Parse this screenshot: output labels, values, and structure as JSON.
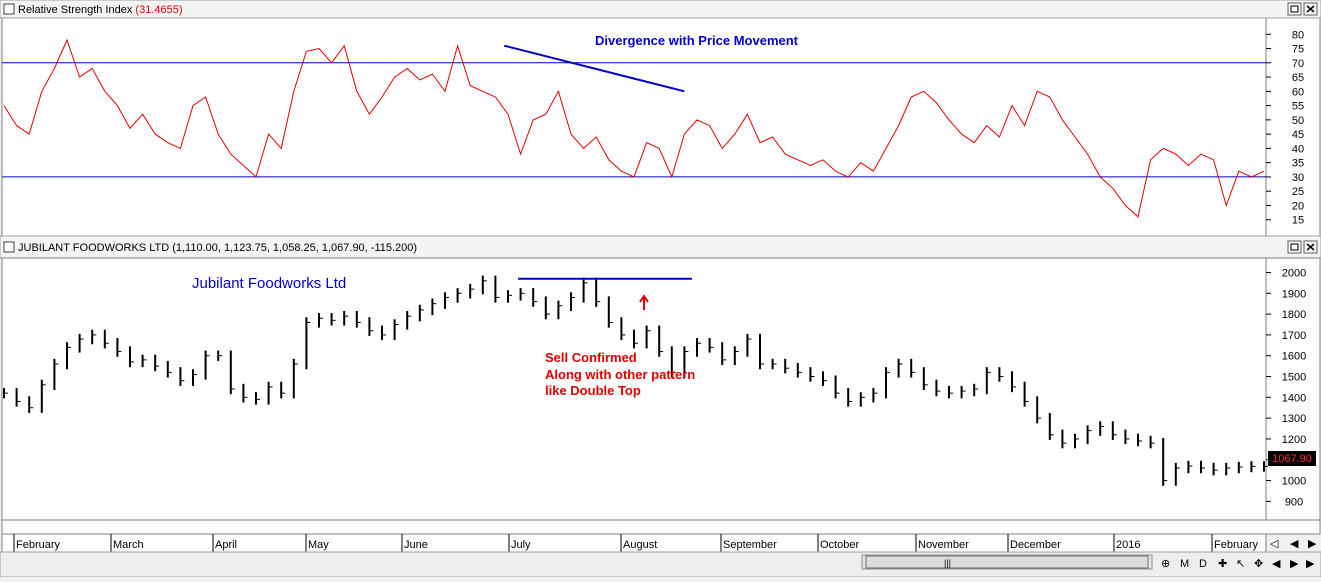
{
  "rsi_panel": {
    "title_prefix": "Relative Strength Index",
    "title_value": "(31.4655)",
    "annotation": "Divergence with Price Movement"
  },
  "price_panel": {
    "title": "JUBILANT FOODWORKS LTD (1,110.00, 1,123.75, 1,058.25, 1,067.90, -115.200)",
    "chart_label": "Jubilant Foodworks Ltd",
    "annotation_lines": [
      "Sell Confirmed",
      "Along with other pattern",
      "like Double Top"
    ],
    "last_price_tag": "1067.90"
  },
  "months": [
    "February",
    "March",
    "April",
    "May",
    "June",
    "July",
    "August",
    "September",
    "October",
    "November",
    "December",
    "2016",
    "February"
  ],
  "colors": {
    "rsi_line": "#e00000",
    "rsi_levels": "#0000b0",
    "annotation_blue": "#0000cc",
    "annotation_red": "#e00000",
    "price_bars": "#000000",
    "price_tag_bg": "#000000",
    "price_tag_fg": "#ff3030"
  },
  "chart_data": [
    {
      "type": "line",
      "name": "Relative Strength Index",
      "ylim": [
        10,
        85
      ],
      "yticks": [
        15,
        20,
        25,
        30,
        35,
        40,
        45,
        50,
        55,
        60,
        65,
        70,
        75,
        80
      ],
      "levels": [
        70,
        30
      ],
      "trendline": [
        [
          0.397,
          76
        ],
        [
          0.54,
          60
        ]
      ],
      "x": [
        0,
        0.01,
        0.02,
        0.03,
        0.04,
        0.05,
        0.06,
        0.07,
        0.08,
        0.09,
        0.1,
        0.11,
        0.12,
        0.13,
        0.14,
        0.15,
        0.16,
        0.17,
        0.18,
        0.19,
        0.2,
        0.21,
        0.22,
        0.23,
        0.24,
        0.25,
        0.26,
        0.27,
        0.28,
        0.29,
        0.3,
        0.31,
        0.32,
        0.33,
        0.34,
        0.35,
        0.36,
        0.37,
        0.38,
        0.39,
        0.4,
        0.41,
        0.42,
        0.43,
        0.44,
        0.45,
        0.46,
        0.47,
        0.48,
        0.49,
        0.5,
        0.51,
        0.52,
        0.53,
        0.54,
        0.55,
        0.56,
        0.57,
        0.58,
        0.59,
        0.6,
        0.61,
        0.62,
        0.63,
        0.64,
        0.65,
        0.66,
        0.67,
        0.68,
        0.69,
        0.7,
        0.71,
        0.72,
        0.73,
        0.74,
        0.75,
        0.76,
        0.77,
        0.78,
        0.79,
        0.8,
        0.81,
        0.82,
        0.83,
        0.84,
        0.85,
        0.86,
        0.87,
        0.88,
        0.89,
        0.9,
        0.91,
        0.92,
        0.93,
        0.94,
        0.95,
        0.96,
        0.97,
        0.98,
        0.99,
        1
      ],
      "values": [
        55,
        48,
        45,
        60,
        68,
        78,
        65,
        68,
        60,
        55,
        47,
        52,
        45,
        42,
        40,
        55,
        58,
        45,
        38,
        34,
        30,
        45,
        40,
        60,
        74,
        75,
        70,
        76,
        60,
        52,
        58,
        65,
        68,
        64,
        66,
        60,
        76,
        62,
        60,
        58,
        52,
        38,
        50,
        52,
        60,
        45,
        40,
        44,
        36,
        32,
        30,
        42,
        40,
        30,
        45,
        50,
        48,
        40,
        45,
        52,
        42,
        44,
        38,
        36,
        34,
        36,
        32,
        30,
        35,
        32,
        40,
        48,
        58,
        60,
        56,
        50,
        45,
        42,
        48,
        44,
        55,
        48,
        60,
        58,
        50,
        44,
        38,
        30,
        26,
        20,
        16,
        36,
        40,
        38,
        34,
        38,
        36,
        20,
        32,
        30,
        32
      ]
    },
    {
      "type": "bar",
      "name": "JUBILANT FOODWORKS LTD",
      "ylim": [
        820,
        2060
      ],
      "yticks": [
        900,
        1000,
        1100,
        1200,
        1300,
        1400,
        1500,
        1600,
        1700,
        1800,
        1900,
        2000
      ],
      "resistance_line": [
        [
          0.408,
          1970
        ],
        [
          0.546,
          1970
        ]
      ],
      "x": [
        0,
        0.01,
        0.02,
        0.03,
        0.04,
        0.05,
        0.06,
        0.07,
        0.08,
        0.09,
        0.1,
        0.11,
        0.12,
        0.13,
        0.14,
        0.15,
        0.16,
        0.17,
        0.18,
        0.19,
        0.2,
        0.21,
        0.22,
        0.23,
        0.24,
        0.25,
        0.26,
        0.27,
        0.28,
        0.29,
        0.3,
        0.31,
        0.32,
        0.33,
        0.34,
        0.35,
        0.36,
        0.37,
        0.38,
        0.39,
        0.4,
        0.41,
        0.42,
        0.43,
        0.44,
        0.45,
        0.46,
        0.47,
        0.48,
        0.49,
        0.5,
        0.51,
        0.52,
        0.53,
        0.54,
        0.55,
        0.56,
        0.57,
        0.58,
        0.59,
        0.6,
        0.61,
        0.62,
        0.63,
        0.64,
        0.65,
        0.66,
        0.67,
        0.68,
        0.69,
        0.7,
        0.71,
        0.72,
        0.73,
        0.74,
        0.75,
        0.76,
        0.77,
        0.78,
        0.79,
        0.8,
        0.81,
        0.82,
        0.83,
        0.84,
        0.85,
        0.86,
        0.87,
        0.88,
        0.89,
        0.9,
        0.91,
        0.92,
        0.93,
        0.94,
        0.95,
        0.96,
        0.97,
        0.98,
        0.99,
        1
      ],
      "values": [
        1420,
        1380,
        1350,
        1460,
        1560,
        1640,
        1680,
        1700,
        1660,
        1620,
        1570,
        1580,
        1550,
        1520,
        1480,
        1510,
        1600,
        1600,
        1440,
        1400,
        1390,
        1450,
        1420,
        1560,
        1760,
        1780,
        1770,
        1790,
        1760,
        1720,
        1700,
        1750,
        1790,
        1820,
        1850,
        1880,
        1900,
        1920,
        1960,
        1880,
        1890,
        1900,
        1860,
        1800,
        1840,
        1880,
        1950,
        1860,
        1760,
        1700,
        1660,
        1720,
        1620,
        1520,
        1620,
        1660,
        1640,
        1580,
        1620,
        1680,
        1560,
        1560,
        1540,
        1520,
        1500,
        1480,
        1420,
        1380,
        1400,
        1420,
        1520,
        1560,
        1520,
        1460,
        1430,
        1420,
        1430,
        1440,
        1520,
        1500,
        1450,
        1380,
        1300,
        1220,
        1180,
        1200,
        1240,
        1260,
        1220,
        1200,
        1190,
        1180,
        1000,
        1060,
        1070,
        1060,
        1050,
        1060,
        1065,
        1068,
        1068
      ],
      "last_value": 1067.9
    }
  ]
}
